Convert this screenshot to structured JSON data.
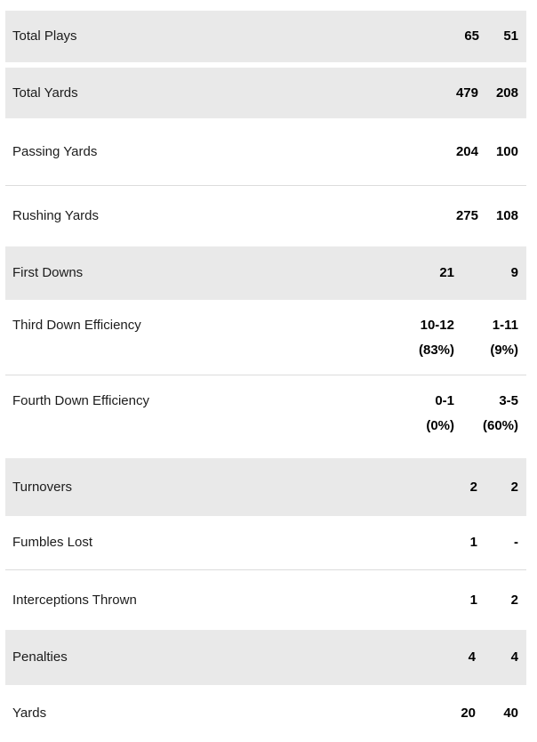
{
  "stats_table": {
    "groups": [
      {
        "rows": [
          {
            "label": "Total Plays",
            "value1": "65",
            "value2": "51"
          }
        ]
      },
      {
        "rows": [
          {
            "label": "Total Yards",
            "value1": "479",
            "value2": "208"
          },
          {
            "label": "Passing Yards",
            "value1": "204",
            "value2": "100"
          },
          {
            "label": "Rushing Yards",
            "value1": "275",
            "value2": "108"
          }
        ]
      },
      {
        "rows": [
          {
            "label": "First Downs",
            "value1": "21",
            "value2": "9"
          },
          {
            "label": "Third Down Efficiency",
            "value1": "10-12",
            "value1_detail": "(83%)",
            "value2": "1-11",
            "value2_detail": "(9%)"
          },
          {
            "label": "Fourth Down Efficiency",
            "value1": "0-1",
            "value1_detail": "(0%)",
            "value2": "3-5",
            "value2_detail": "(60%)"
          }
        ]
      },
      {
        "rows": [
          {
            "label": "Turnovers",
            "value1": "2",
            "value2": "2"
          },
          {
            "label": "Fumbles Lost",
            "value1": "1",
            "value2": "-"
          },
          {
            "label": "Interceptions Thrown",
            "value1": "1",
            "value2": "2"
          }
        ]
      },
      {
        "rows": [
          {
            "label": "Penalties",
            "value1": "4",
            "value2": "4"
          },
          {
            "label": "Yards",
            "value1": "20",
            "value2": "40"
          }
        ]
      }
    ],
    "colors": {
      "row_highlight_bg": "#e9e9e9",
      "separator": "#dcdcdc",
      "label_text": "#1c1c1c",
      "value_text": "#000000"
    }
  }
}
